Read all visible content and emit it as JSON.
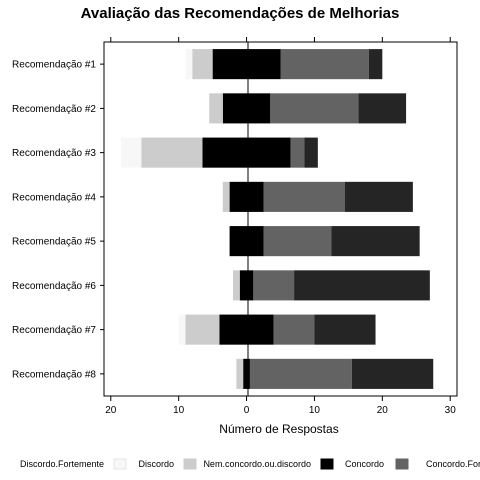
{
  "chart_data": {
    "type": "bar",
    "orientation": "horizontal",
    "stacking": "diverging",
    "title": "Avaliação das Recomendações de Melhorias",
    "xlabel": "Número de Respostas",
    "ylabel": "",
    "xlim": [
      -21,
      31
    ],
    "xticks": [
      -20,
      -10,
      0,
      10,
      20,
      30
    ],
    "xtick_labels": [
      "20",
      "10",
      "0",
      "10",
      "20",
      "30"
    ],
    "categories": [
      "Recomendação #1",
      "Recomendação #2",
      "Recomendação #3",
      "Recomendação #4",
      "Recomendação #5",
      "Recomendação #6",
      "Recomendação #7",
      "Recomendação #8"
    ],
    "series": [
      {
        "name": "Discordo.Fortemente",
        "color": "#f7f7f7",
        "values": [
          1,
          0,
          3,
          0,
          0,
          0,
          1,
          0
        ]
      },
      {
        "name": "Discordo",
        "color": "#cccccc",
        "values": [
          3,
          2,
          9,
          1,
          0,
          1,
          5,
          1
        ]
      },
      {
        "name": "Nem.concordo.ou.discordo",
        "color": "#000000",
        "values": [
          10,
          7,
          13,
          5,
          5,
          2,
          8,
          1
        ]
      },
      {
        "name": "Concordo",
        "color": "#636363",
        "values": [
          13,
          13,
          2,
          12,
          10,
          6,
          6,
          15
        ]
      },
      {
        "name": "Concordo.Fortemente",
        "color": "#252525",
        "values": [
          2,
          7,
          2,
          10,
          13,
          20,
          9,
          12
        ]
      }
    ],
    "legend_position": "bottom",
    "grid": false
  }
}
